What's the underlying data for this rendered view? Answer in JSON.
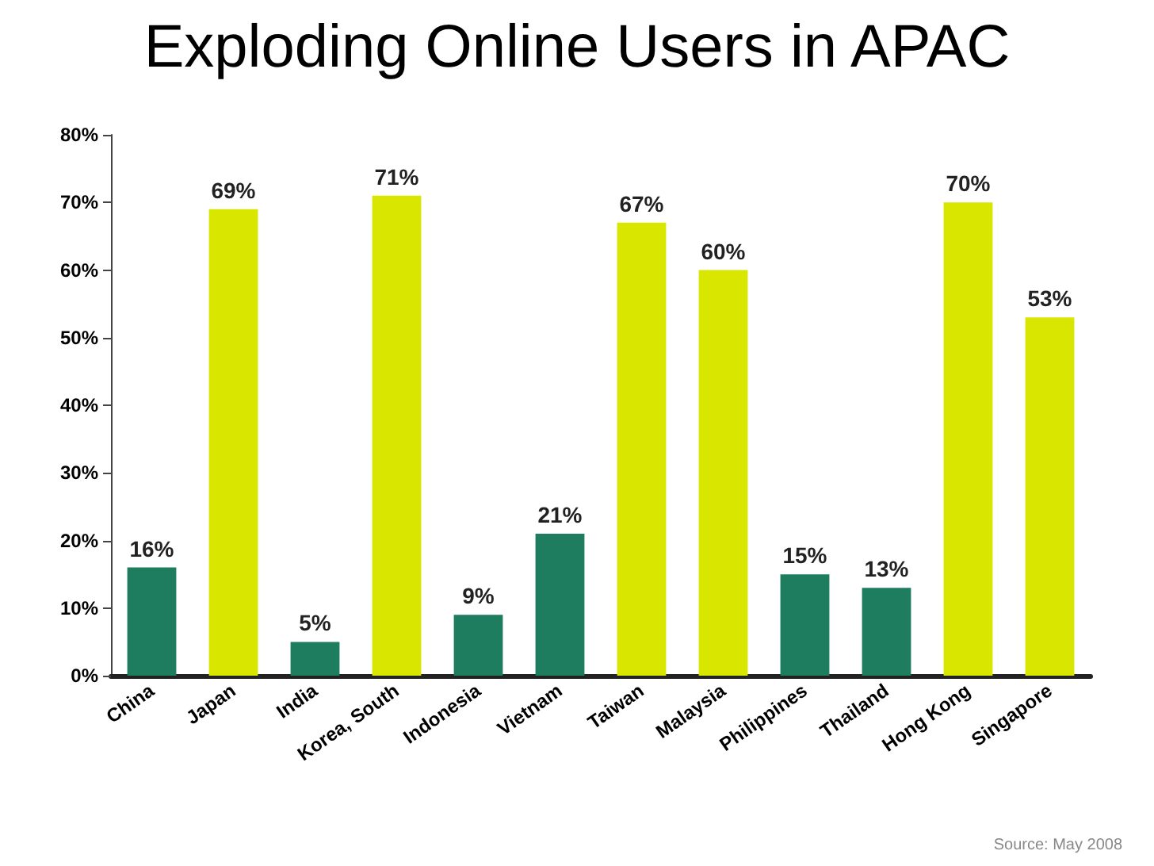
{
  "chart_data": {
    "type": "bar",
    "title": "Exploding Online Users in APAC",
    "categories": [
      "China",
      "Japan",
      "India",
      "Korea, South",
      "Indonesia",
      "Vietnam",
      "Taiwan",
      "Malaysia",
      "Philippines",
      "Thailand",
      "Hong Kong",
      "Singapore"
    ],
    "values": [
      16,
      69,
      5,
      71,
      9,
      21,
      67,
      60,
      15,
      13,
      70,
      53
    ],
    "value_labels": [
      "16%",
      "69%",
      "5%",
      "71%",
      "9%",
      "21%",
      "67%",
      "60%",
      "15%",
      "13%",
      "70%",
      "53%"
    ],
    "colors": [
      "#1e7d5e",
      "#d8e600",
      "#1e7d5e",
      "#d8e600",
      "#1e7d5e",
      "#1e7d5e",
      "#d8e600",
      "#d8e600",
      "#1e7d5e",
      "#1e7d5e",
      "#d8e600",
      "#d8e600"
    ],
    "ylim": [
      0,
      80
    ],
    "yticks": [
      {
        "value": 0,
        "label": "0%"
      },
      {
        "value": 10,
        "label": "10%"
      },
      {
        "value": 20,
        "label": "20%"
      },
      {
        "value": 30,
        "label": "30%"
      },
      {
        "value": 40,
        "label": "40%"
      },
      {
        "value": 50,
        "label": "50%"
      },
      {
        "value": 60,
        "label": "60%"
      },
      {
        "value": 70,
        "label": "70%"
      },
      {
        "value": 80,
        "label": "80%"
      }
    ],
    "grid": false,
    "annotations": [
      "Source: May 2008"
    ]
  }
}
